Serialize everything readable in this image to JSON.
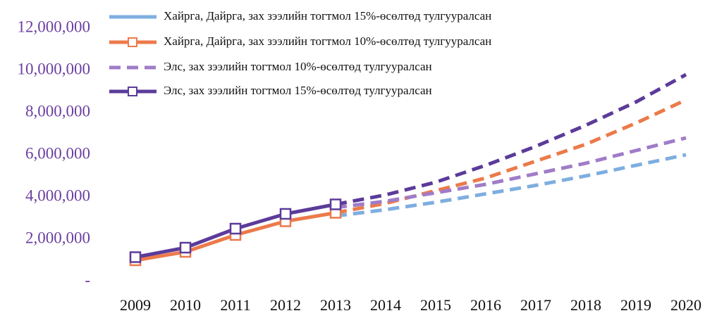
{
  "chart_data": {
    "type": "line",
    "categories": [
      "2009",
      "2010",
      "2011",
      "2012",
      "2013",
      "2014",
      "2015",
      "2016",
      "2017",
      "2018",
      "2019",
      "2020"
    ],
    "series": [
      {
        "name": "Хайрга, Дайрга, зах зээлийн тогтмол 15%-өсөлтөд тулгууралсан",
        "color": "#7eaee0",
        "values": [
          null,
          null,
          null,
          null,
          3100000,
          3400000,
          3750000,
          4150000,
          4550000,
          5000000,
          5500000,
          6000000
        ]
      },
      {
        "name": "Хайрга, Дайрга, зах зээлийн тогтмол 10%-өсөлтөд тулгууралсан",
        "color": "#ec7a4a",
        "marker": "square",
        "values": [
          1000000,
          1400000,
          2200000,
          2850000,
          3250000,
          3700000,
          4300000,
          4900000,
          5700000,
          6500000,
          7500000,
          8600000
        ]
      },
      {
        "name": "Элс, зах зээлийн тогтмол 10%-өсөлтөд тулгууралсан",
        "color": "#a07cc8",
        "dash": true,
        "values": [
          null,
          null,
          null,
          null,
          3500000,
          3800000,
          4200000,
          4600000,
          5100000,
          5600000,
          6200000,
          6800000
        ]
      },
      {
        "name": "Элс, зах зээлийн тогтмол 15%-өсөлтөд тулгууралсан",
        "color": "#5b3b9a",
        "marker": "square",
        "values": [
          1150000,
          1600000,
          2500000,
          3200000,
          3650000,
          4100000,
          4700000,
          5500000,
          6400000,
          7400000,
          8500000,
          9800000
        ]
      }
    ],
    "ylim": [
      0,
      12000000
    ],
    "yticks": [
      {
        "value": 0,
        "label": "-"
      },
      {
        "value": 2000000,
        "label": "2,000,000"
      },
      {
        "value": 4000000,
        "label": "4,000,000"
      },
      {
        "value": 6000000,
        "label": "6,000,000"
      },
      {
        "value": 8000000,
        "label": "8,000,000"
      },
      {
        "value": 10000000,
        "label": "10,000,000"
      },
      {
        "value": 12000000,
        "label": "12,000,000"
      }
    ],
    "grid": false
  }
}
